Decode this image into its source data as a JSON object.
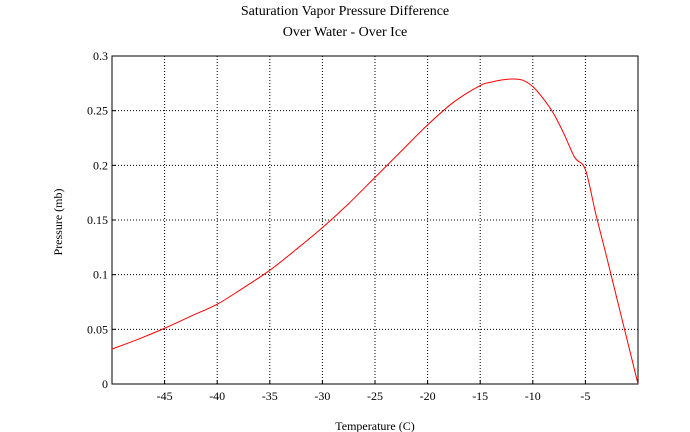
{
  "chart_data": {
    "type": "line",
    "title": "Saturation Vapor Pressure Difference",
    "subtitle": "Over Water - Over Ice",
    "xlabel": "Temperature (C)",
    "ylabel": "Pressure (mb)",
    "xlim": [
      -50,
      0
    ],
    "ylim": [
      0,
      0.3
    ],
    "grid": true,
    "x_ticks": [
      -45,
      -40,
      -35,
      -30,
      -25,
      -20,
      -15,
      -10,
      -5
    ],
    "x_tick_labels": [
      "-45",
      "-40",
      "-35",
      "-30",
      "-25",
      "-20",
      "-15",
      "-10",
      "-5"
    ],
    "y_ticks": [
      0,
      0.05,
      0.1,
      0.15,
      0.2,
      0.25,
      0.3
    ],
    "y_tick_labels": [
      "0",
      "0.05",
      "0.1",
      "0.15",
      "0.2",
      "0.25",
      "0.3"
    ],
    "series": [
      {
        "color": "#ff0000",
        "x": [
          -50,
          -47.5,
          -45,
          -42.5,
          -40,
          -37.5,
          -35,
          -32.5,
          -30,
          -27.5,
          -25,
          -22.5,
          -20,
          -17.5,
          -15,
          -14,
          -13,
          -12,
          -11,
          -10,
          -9,
          -8,
          -7,
          -6,
          -5,
          -4,
          -3,
          -2,
          -1,
          0
        ],
        "y": [
          0.032,
          0.041,
          0.051,
          0.062,
          0.073,
          0.088,
          0.104,
          0.123,
          0.143,
          0.165,
          0.189,
          0.213,
          0.237,
          0.258,
          0.273,
          0.276,
          0.278,
          0.279,
          0.278,
          0.272,
          0.261,
          0.247,
          0.228,
          0.207,
          0.196,
          0.155,
          0.117,
          0.078,
          0.039,
          0.0
        ]
      }
    ]
  }
}
